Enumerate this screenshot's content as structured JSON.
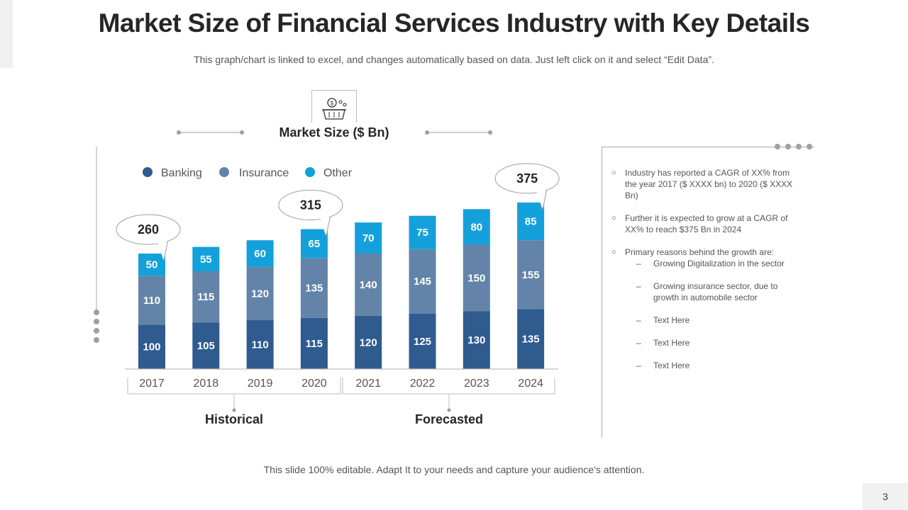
{
  "slide": {
    "title": "Market Size of Financial Services Industry with Key Details",
    "subtitle": "This graph/chart is linked to excel, and changes automatically based on data. Just left click on it and select “Edit Data”.",
    "footer": "This slide 100% editable. Adapt  It to your needs and capture your audience’s attention.",
    "page_number": "3"
  },
  "colors": {
    "banking": "#2f5b8f",
    "insurance": "#6384a8",
    "other": "#14a0db",
    "axis": "#bfbfbf",
    "decor": "#9e9e9e"
  },
  "chart_data": {
    "type": "bar",
    "stacked": true,
    "title": "Market Size ($ Bn)",
    "categories": [
      "2017",
      "2018",
      "2019",
      "2020",
      "2021",
      "2022",
      "2023",
      "2024"
    ],
    "series": [
      {
        "name": "Banking",
        "values": [
          100,
          105,
          110,
          115,
          120,
          125,
          130,
          135
        ]
      },
      {
        "name": "Insurance",
        "values": [
          110,
          115,
          120,
          135,
          140,
          145,
          150,
          155
        ]
      },
      {
        "name": "Other",
        "values": [
          50,
          55,
          60,
          65,
          70,
          75,
          80,
          85
        ]
      }
    ],
    "ylim": [
      0,
      420
    ],
    "grid": false,
    "legend": "top-left",
    "callouts": [
      {
        "category": "2017",
        "label": "260"
      },
      {
        "category": "2020",
        "label": "315"
      },
      {
        "category": "2024",
        "label": "375"
      }
    ],
    "groups": [
      {
        "label": "Historical",
        "from": "2017",
        "to": "2020"
      },
      {
        "label": "Forecasted",
        "from": "2021",
        "to": "2024"
      }
    ]
  },
  "notes": {
    "items": [
      {
        "text": "Industry has reported  a CAGR of XX% from the year 2017 ($ XXXX  bn) to 2020 ($ XXXX  Bn)"
      },
      {
        "text": "Further it is expected to grow  at a CAGR of XX%  to reach $375 Bn in 2024"
      },
      {
        "text": "Primary reasons behind the growth are:"
      }
    ],
    "subitems": [
      "Growing Digitalization in the sector",
      "Growing insurance sector, due to growth in automobile  sector",
      "Text Here",
      "Text Here",
      "Text Here"
    ]
  }
}
